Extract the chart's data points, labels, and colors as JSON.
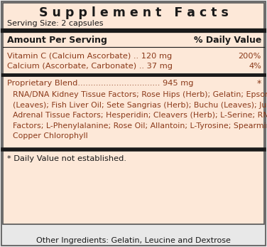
{
  "bg_color": "#fde8d8",
  "outer_bg": "#e8e8e8",
  "title": "S u p p l e m e n t   F a c t s",
  "serving_size": "Serving Size: 2 capsules",
  "header_left": "Amount Per Serving",
  "header_right": "% Daily Value",
  "vit_c_name": "Vitamin C (Calcium Ascorbate) .. 120 mg",
  "vit_c_dv": "200%",
  "calcium_name": "Calcium (Ascorbate, Carbonate) .. 37 mg",
  "calcium_dv": "4%",
  "prop_blend": "Proprietary Blend................................ 945 mg",
  "prop_dv": "*",
  "prop_lines": [
    "RNA/DNA Kidney Tissue Factors; Rose Hips (Herb); Gelatin; Epsom Salt; Cha De Bugre",
    "(Leaves); Fish Liver Oil; Sete Sangrias (Herb); Buchu (Leaves); Juniper Berries; RNA/DNA",
    "Adrenal Tissue Factors; Hesperidin; Cleavers (Herb); L-Serine; RNA/DNA Thalamus Tissue",
    "Factors; L-Phenylalanine; Rose Oil; Allantoin; L-Tyrosine; Spearmint Oil; Aloe Vera; Sodium",
    "Copper Chlorophyll"
  ],
  "footnote": "* Daily Value not established.",
  "other_ingredients": "Other Ingredients: Gelatin, Leucine and Dextrose",
  "text_color": "#8B3A1A",
  "black": "#1a1a1a",
  "border_color": "#555555"
}
